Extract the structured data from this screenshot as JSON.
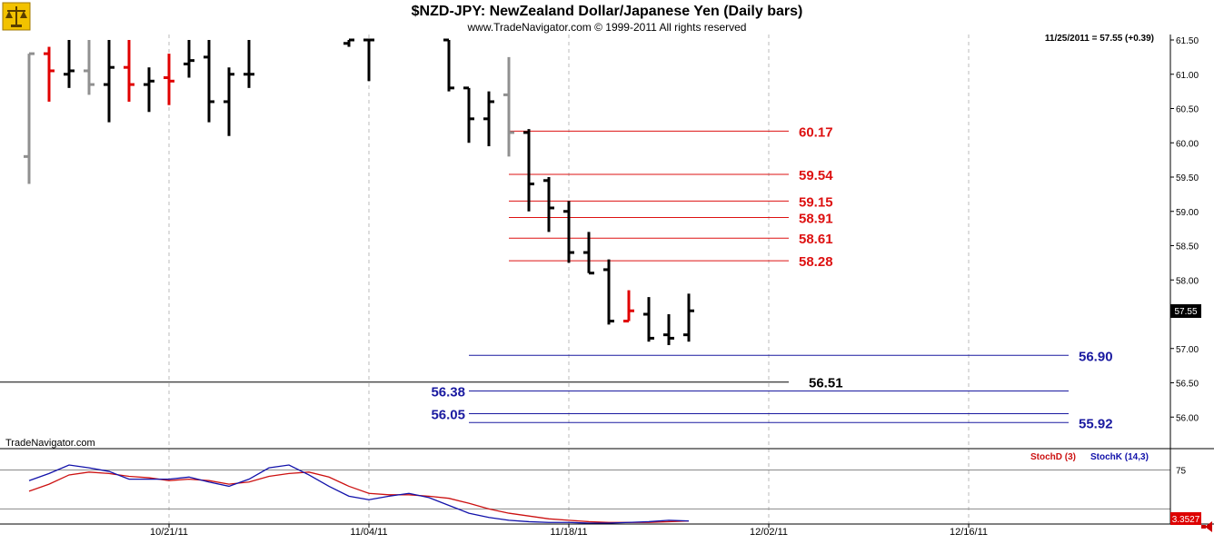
{
  "window": {
    "title": "$NZD-JPY:  NewZealand Dollar/Japanese Yen  (Daily bars)",
    "copyright": "www.TradeNavigator.com © 1999-2011 All rights reserved",
    "watermark": "TradeNavigator.com",
    "logo_icon": "scales-logo-icon"
  },
  "price_panel": {
    "last_quote": "11/25/2011 = 57.55 (+0.39)",
    "last_price_label": "57.55",
    "ylim": [
      55.45,
      61.65
    ],
    "y_ticks": [
      {
        "v": 61.5,
        "label": "61.50"
      },
      {
        "v": 61.0,
        "label": "61.00"
      },
      {
        "v": 60.5,
        "label": "60.50"
      },
      {
        "v": 60.0,
        "label": "60.00"
      },
      {
        "v": 59.5,
        "label": "59.50"
      },
      {
        "v": 59.0,
        "label": "59.00"
      },
      {
        "v": 58.5,
        "label": "58.50"
      },
      {
        "v": 58.0,
        "label": "58.00"
      },
      {
        "v": 57.5,
        "label": "57.50"
      },
      {
        "v": 57.0,
        "label": "57.00"
      },
      {
        "v": 56.5,
        "label": "56.50"
      },
      {
        "v": 56.0,
        "label": "56.00"
      }
    ]
  },
  "x_axis": {
    "ticks": [
      {
        "i": 7,
        "label": "10/21/11"
      },
      {
        "i": 17,
        "label": "11/04/11"
      },
      {
        "i": 27,
        "label": "11/18/11"
      },
      {
        "i": 37,
        "label": "12/02/11"
      },
      {
        "i": 47,
        "label": "12/16/11"
      }
    ]
  },
  "chart_data": [
    {
      "type": "ohlc",
      "title": "$NZD-JPY:  NewZealand Dollar/Japanese Yen  (Daily bars)",
      "bars": [
        {
          "i": 0,
          "o": 59.8,
          "h": 61.3,
          "l": 59.4,
          "c": 61.3,
          "color": "gray"
        },
        {
          "i": 1,
          "o": 61.3,
          "h": 61.4,
          "l": 60.6,
          "c": 61.05,
          "color": "red"
        },
        {
          "i": 2,
          "o": 61.0,
          "h": 61.5,
          "l": 60.8,
          "c": 61.05,
          "color": "black"
        },
        {
          "i": 3,
          "o": 61.05,
          "h": 61.5,
          "l": 60.7,
          "c": 60.85,
          "color": "gray"
        },
        {
          "i": 4,
          "o": 60.85,
          "h": 61.5,
          "l": 60.3,
          "c": 61.1,
          "color": "black"
        },
        {
          "i": 5,
          "o": 61.1,
          "h": 61.5,
          "l": 60.6,
          "c": 60.85,
          "color": "red"
        },
        {
          "i": 6,
          "o": 60.85,
          "h": 61.1,
          "l": 60.45,
          "c": 60.9,
          "color": "black"
        },
        {
          "i": 7,
          "o": 60.95,
          "h": 61.3,
          "l": 60.55,
          "c": 60.9,
          "color": "red"
        },
        {
          "i": 8,
          "o": 61.15,
          "h": 61.5,
          "l": 60.95,
          "c": 61.2,
          "color": "black"
        },
        {
          "i": 9,
          "o": 61.25,
          "h": 61.5,
          "l": 60.3,
          "c": 60.6,
          "color": "black"
        },
        {
          "i": 10,
          "o": 60.6,
          "h": 61.1,
          "l": 60.1,
          "c": 61.0,
          "color": "black"
        },
        {
          "i": 11,
          "o": 61.0,
          "h": 61.5,
          "l": 60.8,
          "c": 61.0,
          "color": "black"
        },
        {
          "i": 16,
          "o": 61.45,
          "h": 61.5,
          "l": 61.4,
          "c": 61.5,
          "color": "black"
        },
        {
          "i": 17,
          "o": 61.5,
          "h": 61.5,
          "l": 60.9,
          "c": 61.5,
          "color": "black"
        },
        {
          "i": 21,
          "o": 61.5,
          "h": 61.5,
          "l": 60.75,
          "c": 60.8,
          "color": "black"
        },
        {
          "i": 22,
          "o": 60.8,
          "h": 60.8,
          "l": 60.0,
          "c": 60.35,
          "color": "black"
        },
        {
          "i": 23,
          "o": 60.35,
          "h": 60.75,
          "l": 59.95,
          "c": 60.6,
          "color": "black"
        },
        {
          "i": 24,
          "o": 60.7,
          "h": 61.25,
          "l": 59.8,
          "c": 60.15,
          "color": "gray"
        },
        {
          "i": 25,
          "o": 60.15,
          "h": 60.2,
          "l": 59.0,
          "c": 59.4,
          "color": "black"
        },
        {
          "i": 26,
          "o": 59.45,
          "h": 59.5,
          "l": 58.7,
          "c": 59.05,
          "color": "black"
        },
        {
          "i": 27,
          "o": 59.0,
          "h": 59.15,
          "l": 58.25,
          "c": 58.4,
          "color": "black"
        },
        {
          "i": 28,
          "o": 58.4,
          "h": 58.7,
          "l": 58.1,
          "c": 58.1,
          "color": "black"
        },
        {
          "i": 29,
          "o": 58.15,
          "h": 58.3,
          "l": 57.35,
          "c": 57.4,
          "color": "black"
        },
        {
          "i": 30,
          "o": 57.4,
          "h": 57.85,
          "l": 57.4,
          "c": 57.55,
          "color": "red"
        },
        {
          "i": 31,
          "o": 57.5,
          "h": 57.75,
          "l": 57.1,
          "c": 57.15,
          "color": "black"
        },
        {
          "i": 32,
          "o": 57.2,
          "h": 57.5,
          "l": 57.05,
          "c": 57.15,
          "color": "black"
        },
        {
          "i": 33,
          "o": 57.2,
          "h": 57.8,
          "l": 57.1,
          "c": 57.55,
          "color": "black"
        }
      ],
      "levels": [
        {
          "v": 60.17,
          "label": "60.17",
          "color": "#dd1111",
          "start_i": 24,
          "end_i": 38,
          "label_i": 38.5
        },
        {
          "v": 59.54,
          "label": "59.54",
          "color": "#dd1111",
          "start_i": 24,
          "end_i": 38,
          "label_i": 38.5
        },
        {
          "v": 59.15,
          "label": "59.15",
          "color": "#dd1111",
          "start_i": 24,
          "end_i": 38,
          "label_i": 38.5
        },
        {
          "v": 58.91,
          "label": "58.91",
          "color": "#dd1111",
          "start_i": 24,
          "end_i": 38,
          "label_i": 38.5
        },
        {
          "v": 58.61,
          "label": "58.61",
          "color": "#dd1111",
          "start_i": 24,
          "end_i": 38,
          "label_i": 38.5
        },
        {
          "v": 58.28,
          "label": "58.28",
          "color": "#dd1111",
          "start_i": 24,
          "end_i": 38,
          "label_i": 38.5
        },
        {
          "v": 56.9,
          "label": "56.90",
          "color": "#1a1aa0",
          "start_i": 22,
          "end_i": 52,
          "label_i": 52.5
        },
        {
          "v": 56.51,
          "label": "56.51",
          "color": "#000000",
          "start_i": -1.5,
          "end_i": 38,
          "label_i": 39
        },
        {
          "v": 56.38,
          "label": "56.38",
          "color": "#1a1aa0",
          "start_i": 22,
          "end_i": 52,
          "label_i": 20
        },
        {
          "v": 56.05,
          "label": "56.05",
          "color": "#1a1aa0",
          "start_i": 22,
          "end_i": 52,
          "label_i": 20
        },
        {
          "v": 55.92,
          "label": "55.92",
          "color": "#1a1aa0",
          "start_i": 22,
          "end_i": 52,
          "label_i": 52.5
        }
      ]
    },
    {
      "type": "line",
      "legend": [
        {
          "name": "StochD (3)",
          "color": "#cc1111"
        },
        {
          "name": "StochK (14,3)",
          "color": "#1111aa"
        }
      ],
      "ylim": [
        0,
        100
      ],
      "y_ticks": [
        {
          "v": 75,
          "label": "75"
        }
      ],
      "ref_lines": [
        75,
        20
      ],
      "last_value_label": "3.3527",
      "series": [
        {
          "name": "StochD (3)",
          "color": "#cc1111",
          "x": [
            0,
            1,
            2,
            3,
            4,
            5,
            6,
            7,
            8,
            9,
            10,
            11,
            12,
            13,
            14,
            15,
            16,
            17,
            18,
            19,
            20,
            21,
            22,
            23,
            24,
            25,
            26,
            27,
            28,
            29,
            30,
            31,
            32,
            33
          ],
          "values": [
            45,
            55,
            68,
            72,
            70,
            66,
            64,
            60,
            62,
            60,
            55,
            58,
            66,
            70,
            72,
            65,
            52,
            42,
            40,
            40,
            38,
            35,
            28,
            20,
            14,
            10,
            6,
            4,
            2,
            1,
            1,
            1,
            2,
            3
          ]
        },
        {
          "name": "StochK (14,3)",
          "color": "#1111aa",
          "x": [
            0,
            1,
            2,
            3,
            4,
            5,
            6,
            7,
            8,
            9,
            10,
            11,
            12,
            13,
            14,
            15,
            16,
            17,
            18,
            19,
            20,
            21,
            22,
            23,
            24,
            25,
            26,
            27,
            28,
            29,
            30,
            31,
            32,
            33
          ],
          "values": [
            60,
            70,
            82,
            78,
            73,
            62,
            62,
            62,
            65,
            58,
            52,
            62,
            78,
            82,
            68,
            52,
            38,
            33,
            38,
            42,
            36,
            25,
            14,
            8,
            4,
            2,
            1,
            1,
            0,
            0,
            1,
            2,
            4,
            3
          ]
        }
      ]
    }
  ]
}
